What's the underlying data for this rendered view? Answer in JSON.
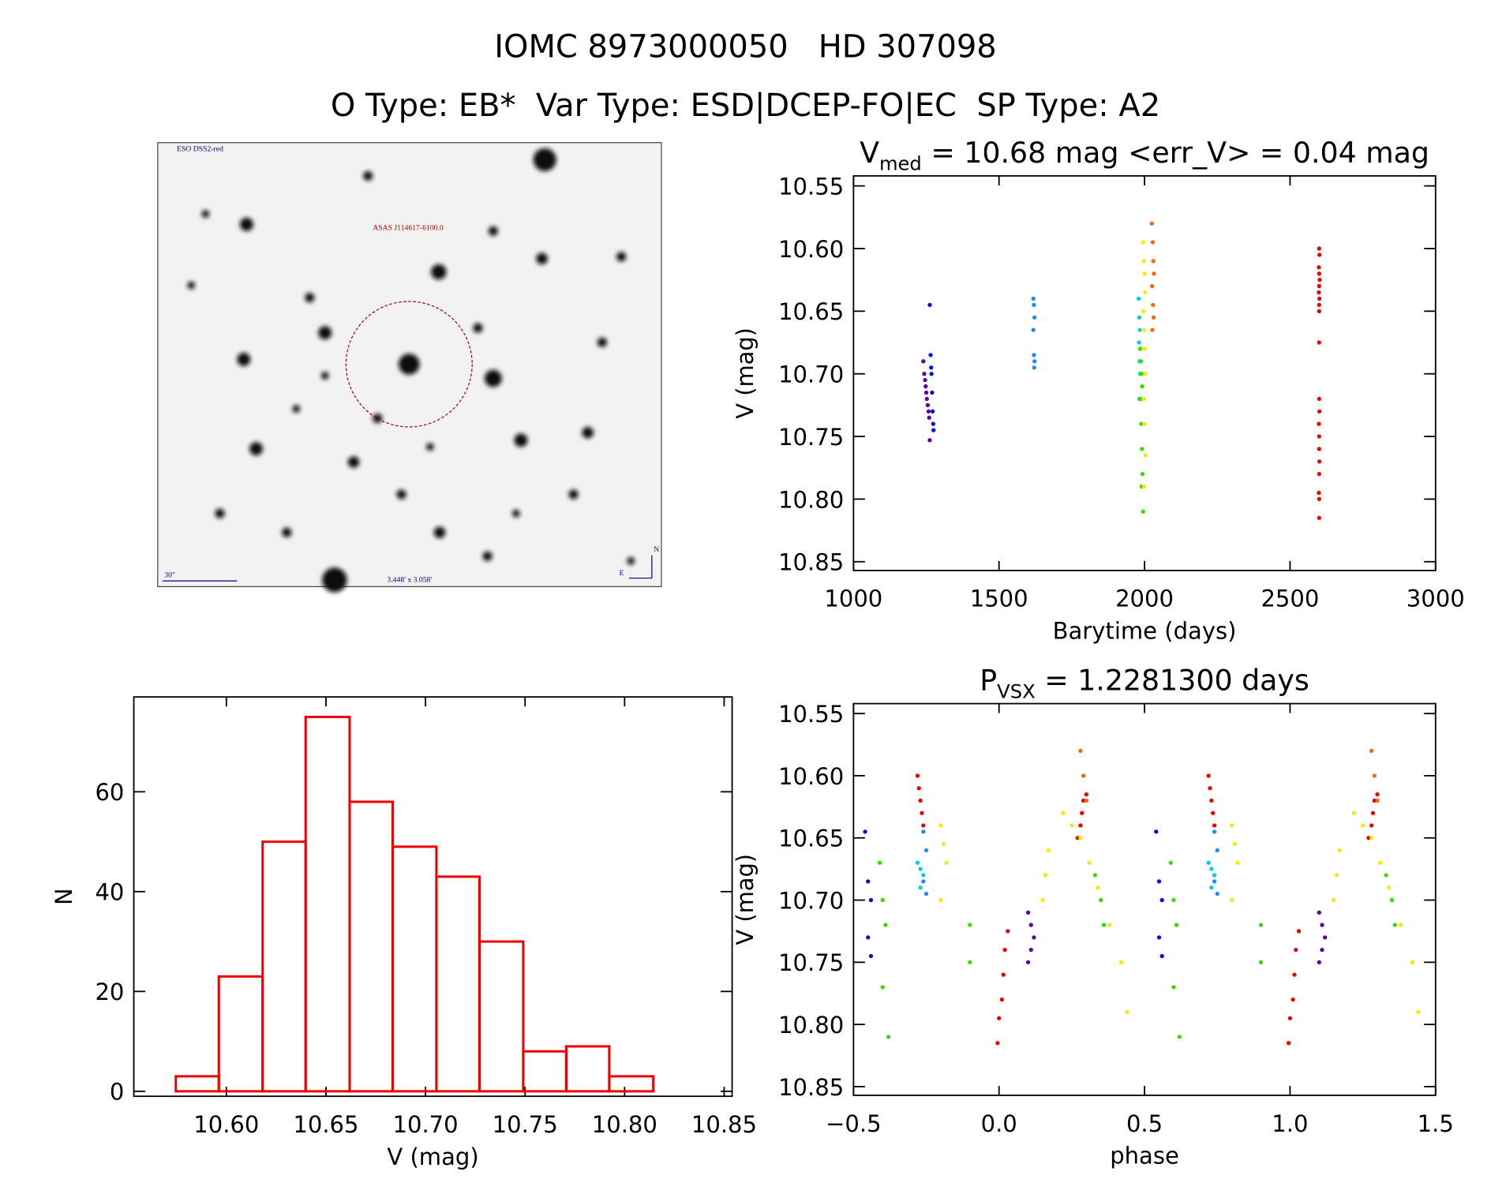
{
  "header": {
    "line1": "IOMC 8973000050   HD 307098",
    "line2": "O Type: EB*  Var Type: ESD|DCEP-FO|EC  SP Type: A2"
  },
  "finder": {
    "survey": "ESO DSS2-red",
    "target": "ASAS J114617-6100.0",
    "scale": "30\"",
    "field": "3.448' x 3.058'",
    "north": "N",
    "east": "E"
  },
  "chart_data": [
    {
      "type": "scatter",
      "title": {
        "main": "V",
        "sub": "med",
        "rest": " = 10.68 mag <err_V> = 0.04 mag"
      },
      "xlabel": "Barytime (days)",
      "ylabel": "V (mag)",
      "xlim": [
        1000,
        3000
      ],
      "xticks": [
        1000,
        1500,
        2000,
        2500,
        3000
      ],
      "ylim": [
        10.542,
        10.857
      ],
      "invert_y": true,
      "yticks": [
        10.55,
        {
          "value": 10.6,
          "label": "10.60"
        },
        10.65,
        {
          "value": 10.7,
          "label": "10.70"
        },
        10.75,
        {
          "value": 10.8,
          "label": "10.80"
        },
        10.85
      ],
      "series": [
        {
          "color": "#5a00b0",
          "x": [
            1240,
            1243,
            1246,
            1248,
            1250,
            1252,
            1255,
            1258,
            1260,
            1262
          ],
          "values": [
            10.69,
            10.7,
            10.705,
            10.71,
            10.715,
            10.72,
            10.725,
            10.73,
            10.735,
            10.753
          ]
        },
        {
          "color": "#0010e0",
          "x": [
            1262,
            1265,
            1267,
            1268,
            1270,
            1272,
            1274,
            1275
          ],
          "values": [
            10.645,
            10.685,
            10.695,
            10.7,
            10.715,
            10.73,
            10.74,
            10.745
          ]
        },
        {
          "color": "#1e8cff",
          "x": [
            1618,
            1620,
            1622,
            1618,
            1620,
            1622,
            1621
          ],
          "values": [
            10.64,
            10.645,
            10.655,
            10.665,
            10.685,
            10.69,
            10.695
          ]
        },
        {
          "color": "#00d0d8",
          "x": [
            1980,
            1982,
            1984,
            1981,
            1983,
            1985,
            1982
          ],
          "values": [
            10.64,
            10.655,
            10.665,
            10.675,
            10.69,
            10.7,
            10.72
          ]
        },
        {
          "color": "#33dd00",
          "x": [
            1985,
            1988,
            1990,
            1992,
            1987,
            1989,
            1991,
            1993,
            1990,
            1995
          ],
          "values": [
            10.68,
            10.69,
            10.7,
            10.71,
            10.72,
            10.74,
            10.76,
            10.78,
            10.79,
            10.81
          ]
        },
        {
          "color": "#ffe800",
          "x": [
            1995,
            1998,
            2000,
            2002,
            1996,
            1999,
            2001,
            2003,
            1997,
            2000,
            2004,
            1998
          ],
          "values": [
            10.595,
            10.61,
            10.62,
            10.635,
            10.65,
            10.665,
            10.68,
            10.7,
            10.72,
            10.74,
            10.765,
            10.79
          ]
        },
        {
          "color": "#ff6600",
          "x": [
            2025,
            2028,
            2030,
            2032,
            2026,
            2029,
            2031,
            2027
          ],
          "values": [
            10.58,
            10.595,
            10.61,
            10.62,
            10.63,
            10.645,
            10.655,
            10.665
          ]
        },
        {
          "color": "#ee0000",
          "x": [
            2600,
            2601,
            2599,
            2600,
            2602,
            2600,
            2599,
            2601,
            2600,
            2600,
            2600,
            2600,
            2601,
            2599,
            2600,
            2600,
            2601,
            2600,
            2599,
            2600,
            2600
          ],
          "values": [
            10.6,
            10.605,
            10.615,
            10.62,
            10.625,
            10.63,
            10.635,
            10.64,
            10.645,
            10.65,
            10.675,
            10.72,
            10.73,
            10.74,
            10.75,
            10.76,
            10.77,
            10.78,
            10.795,
            10.8,
            10.815
          ]
        }
      ]
    },
    {
      "type": "scatter",
      "title": {
        "main": "P",
        "sub": "VSX",
        "rest": " = 1.2281300 days"
      },
      "xlabel": "phase",
      "ylabel": "V (mag)",
      "xlim": [
        -0.5,
        1.5
      ],
      "xticks": [
        {
          "value": -0.5,
          "label": "−0.5"
        },
        {
          "value": 0,
          "label": "0.0"
        },
        0.5,
        {
          "value": 1,
          "label": "1.0"
        },
        1.5
      ],
      "ylim": [
        10.542,
        10.857
      ],
      "invert_y": true,
      "yticks": [
        10.55,
        {
          "value": 10.6,
          "label": "10.60"
        },
        10.65,
        {
          "value": 10.7,
          "label": "10.70"
        },
        10.75,
        {
          "value": 10.8,
          "label": "10.80"
        },
        10.85
      ],
      "series": [
        {
          "color": "#ee0000",
          "x": [
            -0.28,
            -0.275,
            -0.27,
            -0.265,
            -0.26,
            -0.005,
            0.0,
            0.01,
            0.015,
            0.02,
            0.03,
            0.27,
            0.28,
            0.285,
            0.29,
            0.3,
            0.72,
            0.725,
            0.73,
            0.735,
            0.74,
            0.995,
            1.0,
            1.01,
            1.015,
            1.02,
            1.03,
            1.27,
            1.28,
            1.285,
            1.29,
            1.3
          ],
          "values": [
            10.6,
            10.61,
            10.62,
            10.63,
            10.64,
            10.815,
            10.795,
            10.78,
            10.76,
            10.74,
            10.725,
            10.65,
            10.64,
            10.63,
            10.62,
            10.615,
            10.6,
            10.61,
            10.62,
            10.63,
            10.64,
            10.815,
            10.795,
            10.78,
            10.76,
            10.74,
            10.725,
            10.65,
            10.64,
            10.63,
            10.62,
            10.615
          ]
        },
        {
          "color": "#ffe800",
          "x": [
            -0.2,
            -0.19,
            -0.18,
            -0.2,
            0.15,
            0.16,
            0.17,
            0.22,
            0.25,
            0.28,
            0.31,
            0.34,
            0.38,
            0.42,
            0.44,
            0.8,
            0.81,
            0.82,
            0.8,
            1.15,
            1.16,
            1.17,
            1.22,
            1.25,
            1.28,
            1.31,
            1.34,
            1.38,
            1.42,
            1.44
          ],
          "values": [
            10.64,
            10.655,
            10.67,
            10.7,
            10.7,
            10.68,
            10.66,
            10.63,
            10.64,
            10.65,
            10.67,
            10.69,
            10.72,
            10.75,
            10.79,
            10.64,
            10.655,
            10.67,
            10.7,
            10.7,
            10.68,
            10.66,
            10.63,
            10.64,
            10.65,
            10.67,
            10.69,
            10.72,
            10.75,
            10.79
          ]
        },
        {
          "color": "#33dd00",
          "x": [
            -0.41,
            -0.4,
            -0.39,
            -0.4,
            -0.38,
            -0.1,
            -0.1,
            0.33,
            0.35,
            0.36,
            0.59,
            0.6,
            0.61,
            0.6,
            0.62,
            0.9,
            0.9,
            1.33,
            1.35,
            1.36
          ],
          "values": [
            10.67,
            10.7,
            10.72,
            10.77,
            10.81,
            10.72,
            10.75,
            10.68,
            10.7,
            10.72,
            10.67,
            10.7,
            10.72,
            10.77,
            10.81,
            10.72,
            10.75,
            10.68,
            10.7,
            10.72
          ]
        },
        {
          "color": "#00d0d8",
          "x": [
            -0.28,
            -0.27,
            -0.26,
            -0.27,
            0.72,
            0.73,
            0.74,
            0.73
          ],
          "values": [
            10.67,
            10.675,
            10.68,
            10.69,
            10.67,
            10.675,
            10.68,
            10.69
          ]
        },
        {
          "color": "#1e8cff",
          "x": [
            -0.26,
            -0.25,
            -0.26,
            -0.25,
            0.74,
            0.75,
            0.74,
            0.75
          ],
          "values": [
            10.645,
            10.66,
            10.685,
            10.695,
            10.645,
            10.66,
            10.685,
            10.695
          ]
        },
        {
          "color": "#0010e0",
          "x": [
            -0.46,
            -0.45,
            -0.44,
            -0.45,
            -0.44,
            0.54,
            0.55,
            0.56,
            0.55,
            0.56
          ],
          "values": [
            10.645,
            10.685,
            10.7,
            10.73,
            10.745,
            10.645,
            10.685,
            10.7,
            10.73,
            10.745
          ]
        },
        {
          "color": "#5a00b0",
          "x": [
            0.1,
            0.11,
            0.12,
            0.11,
            0.1,
            1.1,
            1.11,
            1.12,
            1.11,
            1.1
          ],
          "values": [
            10.71,
            10.72,
            10.73,
            10.74,
            10.75,
            10.71,
            10.72,
            10.73,
            10.74,
            10.75
          ]
        },
        {
          "color": "#ff6600",
          "x": [
            0.28,
            0.29,
            0.3,
            1.28,
            1.29,
            1.3
          ],
          "values": [
            10.58,
            10.6,
            10.62,
            10.58,
            10.6,
            10.62
          ]
        }
      ]
    },
    {
      "type": "histogram",
      "xlabel": "V (mag)",
      "ylabel": "N",
      "color": "#ee0000",
      "bins": [
        10.5746,
        10.5962,
        10.6182,
        10.6398,
        10.6619,
        10.6835,
        10.7055,
        10.7271,
        10.7491,
        10.7707,
        10.7923,
        10.8144
      ],
      "values": [
        3,
        23,
        50,
        75,
        58,
        49,
        43,
        30,
        8,
        9,
        3
      ],
      "xlim": [
        10.5535,
        10.854
      ],
      "xticks": [
        {
          "value": 10.6,
          "label": "10.60"
        },
        10.65,
        {
          "value": 10.7,
          "label": "10.70"
        },
        10.75,
        {
          "value": 10.8,
          "label": "10.80"
        },
        10.85
      ],
      "ylim": [
        -1,
        79
      ],
      "yticks": [
        0,
        20,
        40,
        60
      ]
    }
  ]
}
